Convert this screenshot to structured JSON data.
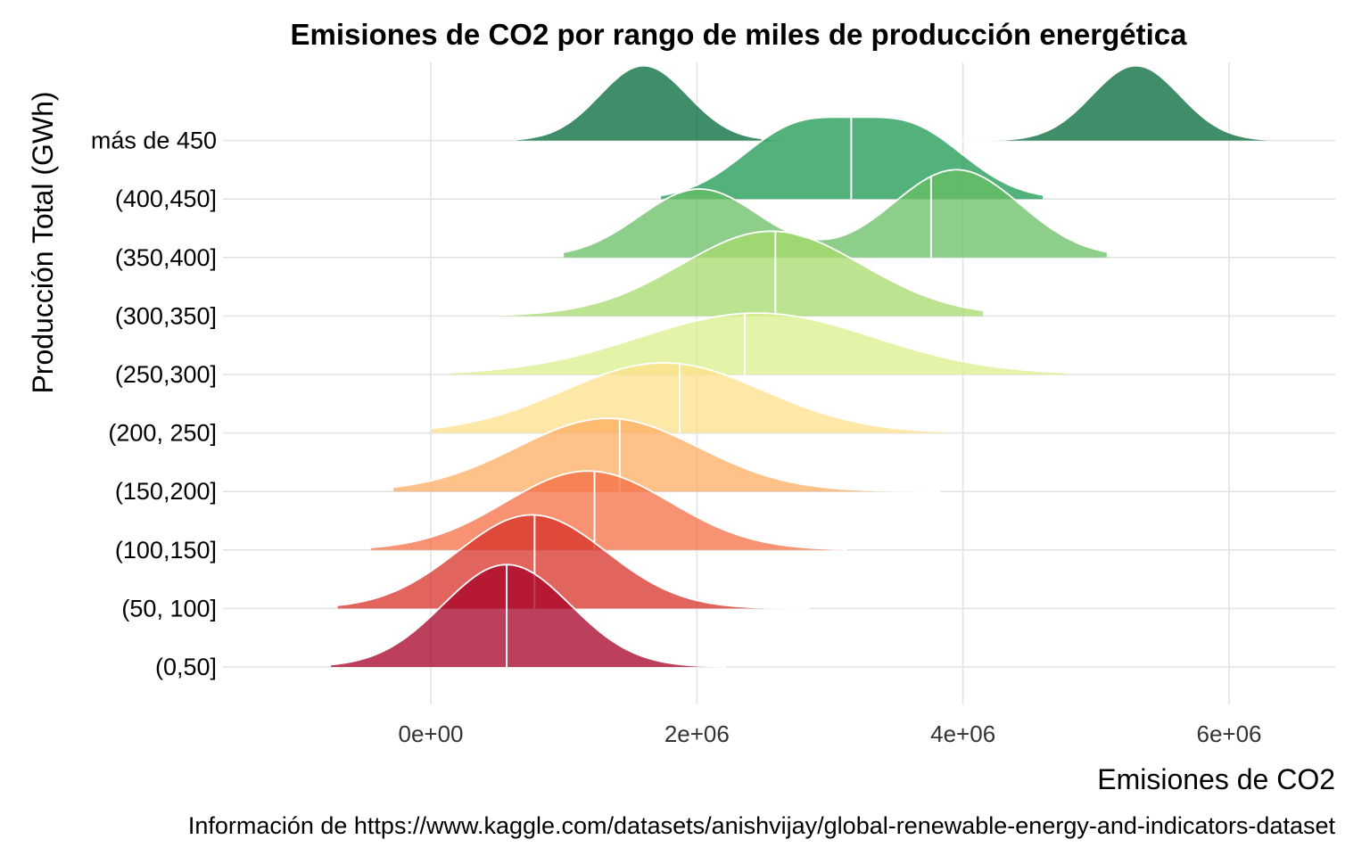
{
  "chart_data": {
    "type": "ridgeline",
    "title": "Emisiones de CO2 por rango de miles de producción energética",
    "xlabel": "Emisiones de CO2",
    "ylabel": "Producción Total (GWh)",
    "caption": "Información de https://www.kaggle.com/datasets/anishvijay/global-renewable-energy-and-indicators-dataset",
    "xlim": [
      -1150000,
      6800000
    ],
    "x_ticks": [
      0,
      2000000,
      4000000,
      6000000
    ],
    "x_tick_labels": [
      "0e+00",
      "2e+06",
      "4e+06",
      "6e+06"
    ],
    "grid": true,
    "categories": [
      "(0,50]",
      "(50, 100]",
      "(100,150]",
      "(150,200]",
      "(200, 250]",
      "(250,300]",
      "(300,350]",
      "(350,400]",
      "(400,450]",
      "más de 450"
    ],
    "series": [
      {
        "category": "(0,50]",
        "color": "#A50026",
        "range": [
          -750000,
          2220000
        ],
        "median": 570000,
        "peak_height": 1.75,
        "modes": [
          {
            "mean": 570000,
            "sd": 480000,
            "weight": 1
          }
        ]
      },
      {
        "category": "(50, 100]",
        "color": "#D73027",
        "range": [
          -700000,
          2850000
        ],
        "median": 780000,
        "peak_height": 1.6,
        "modes": [
          {
            "mean": 760000,
            "sd": 560000,
            "weight": 1
          }
        ]
      },
      {
        "category": "(100,150]",
        "color": "#F46D43",
        "range": [
          -450000,
          3130000
        ],
        "median": 1230000,
        "peak_height": 1.35,
        "modes": [
          {
            "mean": 1180000,
            "sd": 620000,
            "weight": 1
          }
        ]
      },
      {
        "category": "(150,200]",
        "color": "#FDAE61",
        "range": [
          -280000,
          3830000
        ],
        "median": 1420000,
        "peak_height": 1.25,
        "modes": [
          {
            "mean": 1330000,
            "sd": 680000,
            "weight": 1
          }
        ]
      },
      {
        "category": "(200, 250]",
        "color": "#FEE08B",
        "range": [
          0,
          3900000
        ],
        "median": 1870000,
        "peak_height": 1.2,
        "modes": [
          {
            "mean": 1750000,
            "sd": 750000,
            "weight": 1
          }
        ]
      },
      {
        "category": "(250,300]",
        "color": "#D9EF8B",
        "range": [
          150000,
          4780000
        ],
        "median": 2360000,
        "peak_height": 1.05,
        "modes": [
          {
            "mean": 2450000,
            "sd": 880000,
            "weight": 1
          }
        ]
      },
      {
        "category": "(300,350]",
        "color": "#A6D96A",
        "range": [
          500000,
          4150000
        ],
        "median": 2590000,
        "peak_height": 1.45,
        "modes": [
          {
            "mean": 2560000,
            "sd": 680000,
            "weight": 1
          }
        ]
      },
      {
        "category": "(350,400]",
        "color": "#66BD63",
        "range": [
          1000000,
          5080000
        ],
        "median": 3760000,
        "peak_height": 1.5,
        "modes": [
          {
            "mean": 2020000,
            "sd": 450000,
            "weight": 0.78
          },
          {
            "mean": 3950000,
            "sd": 480000,
            "weight": 1
          }
        ]
      },
      {
        "category": "(400,450]",
        "color": "#1A9850",
        "range": [
          1730000,
          4600000
        ],
        "median": 3160000,
        "peak_height": 1.4,
        "modes": [
          {
            "mean": 2750000,
            "sd": 420000,
            "weight": 1
          },
          {
            "mean": 3600000,
            "sd": 420000,
            "weight": 1
          }
        ]
      },
      {
        "category": "más de 450",
        "color": "#006837",
        "range": [
          650000,
          6280000
        ],
        "median": null,
        "peak_height": 1.28,
        "modes": [
          {
            "mean": 1600000,
            "sd": 330000,
            "weight": 1
          },
          {
            "mean": 5300000,
            "sd": 330000,
            "weight": 1
          }
        ]
      }
    ]
  }
}
